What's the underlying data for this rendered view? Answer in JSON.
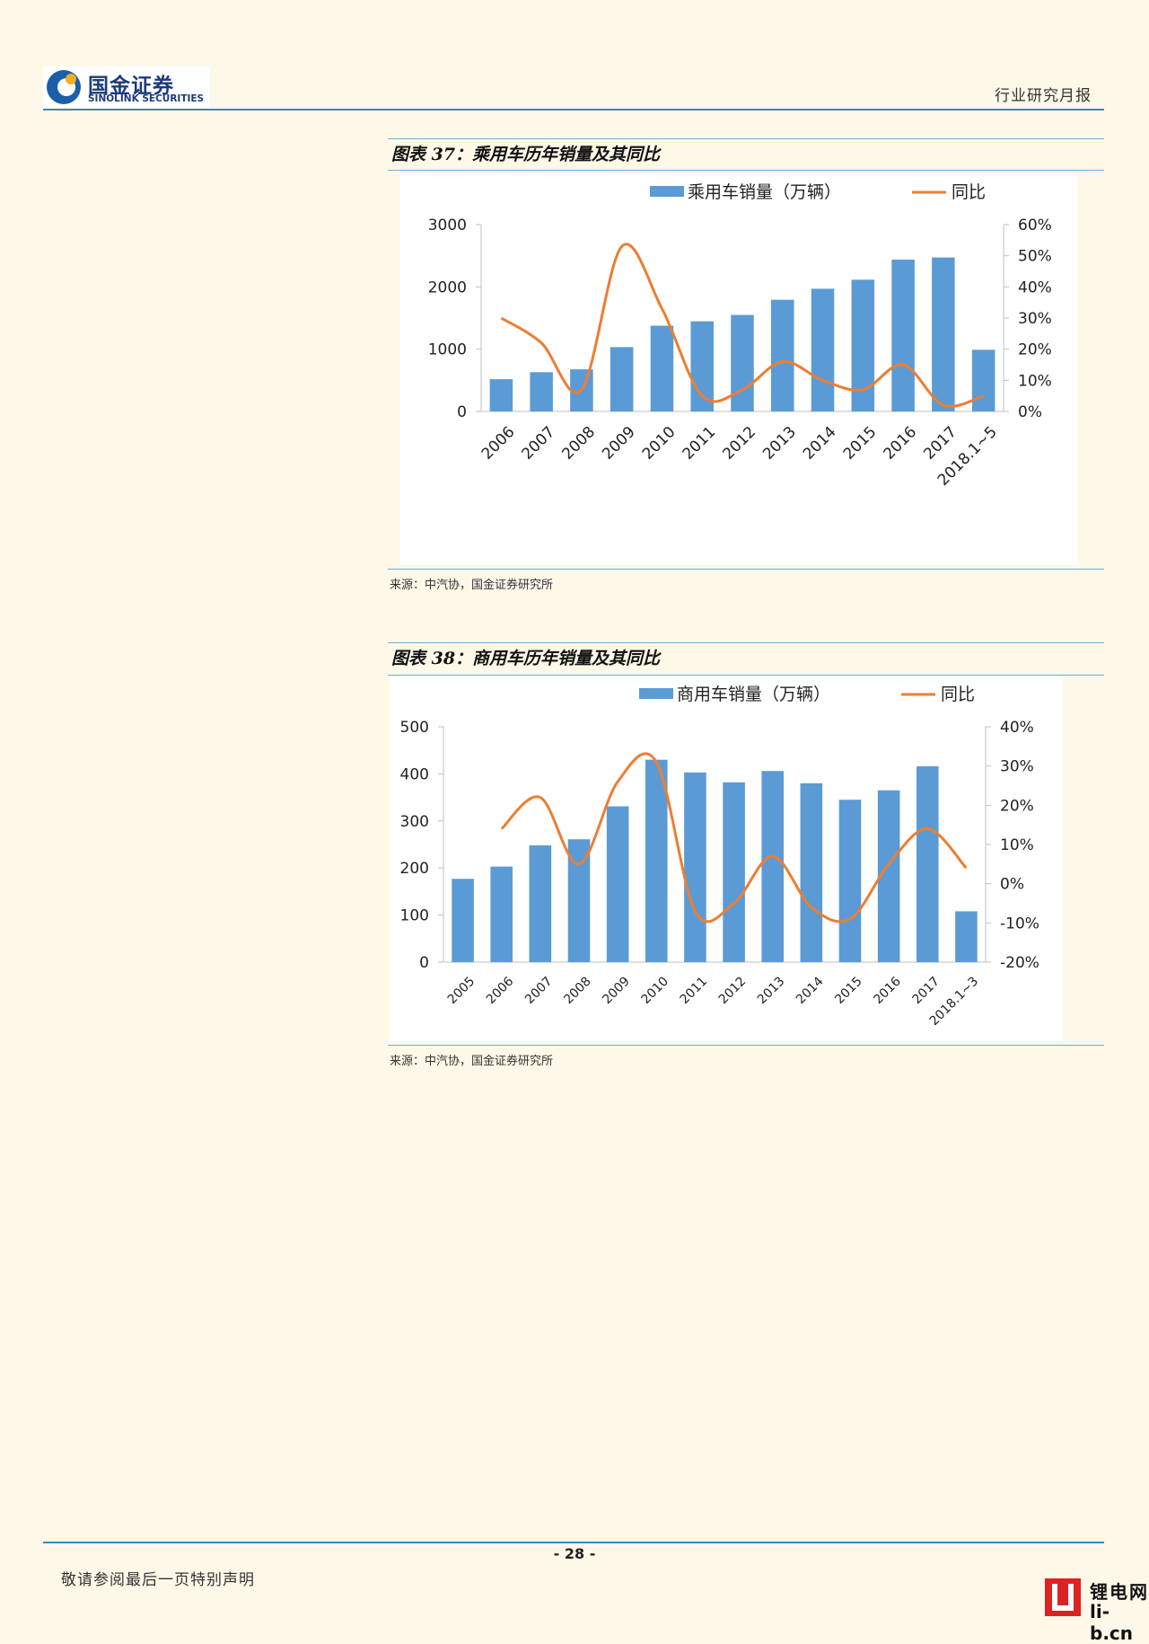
{
  "header": {
    "logo_cn": "国金证券",
    "logo_en": "SINOLINK SECURITIES",
    "report_type": "行业研究月报"
  },
  "colors": {
    "bar": "#5b9bd5",
    "line": "#ed7d31",
    "accent": "#2e8bc0"
  },
  "figures": [
    {
      "title": "图表 37：乘用车历年销量及其同比",
      "source": "来源：中汽协，国金证券研究所"
    },
    {
      "title": "图表 38：商用车历年销量及其同比",
      "source": "来源：中汽协，国金证券研究所"
    }
  ],
  "chart_data": [
    {
      "type": "bar",
      "categories": [
        "2006",
        "2007",
        "2008",
        "2009",
        "2010",
        "2011",
        "2012",
        "2013",
        "2014",
        "2015",
        "2016",
        "2017",
        "2018.1~5"
      ],
      "series": [
        {
          "name": "乘用车销量（万辆）",
          "kind": "bar",
          "axis": "left",
          "values": [
            518,
            630,
            676,
            1033,
            1376,
            1447,
            1550,
            1793,
            1970,
            2115,
            2438,
            2472,
            990
          ]
        },
        {
          "name": "同比",
          "kind": "line",
          "axis": "right",
          "values": [
            0.3,
            0.22,
            0.07,
            0.53,
            0.33,
            0.05,
            0.07,
            0.16,
            0.1,
            0.07,
            0.15,
            0.02,
            0.05
          ]
        }
      ],
      "ylim_left": [
        0,
        3000
      ],
      "yticks_left": [
        "0",
        "1000",
        "2000",
        "3000"
      ],
      "ylim_right": [
        0,
        0.6
      ],
      "yticks_right": [
        "0%",
        "10%",
        "20%",
        "30%",
        "40%",
        "50%",
        "60%"
      ],
      "legend": {
        "placement": "top",
        "bar_label": "乘用车销量（万辆）",
        "line_label": "同比"
      }
    },
    {
      "type": "bar",
      "categories": [
        "2005",
        "2006",
        "2007",
        "2008",
        "2009",
        "2010",
        "2011",
        "2012",
        "2013",
        "2014",
        "2015",
        "2016",
        "2017",
        "2018.1~3"
      ],
      "series": [
        {
          "name": "商用车销量（万辆）",
          "kind": "bar",
          "axis": "left",
          "values": [
            177,
            203,
            248,
            261,
            331,
            430,
            403,
            382,
            406,
            380,
            345,
            365,
            416,
            108
          ]
        },
        {
          "name": "同比",
          "kind": "line",
          "axis": "right",
          "values": [
            null,
            0.14,
            0.22,
            0.05,
            0.26,
            0.31,
            -0.07,
            -0.05,
            0.07,
            -0.06,
            -0.09,
            0.05,
            0.14,
            0.04
          ]
        }
      ],
      "ylim_left": [
        0,
        500
      ],
      "yticks_left": [
        "0",
        "100",
        "200",
        "300",
        "400",
        "500"
      ],
      "ylim_right": [
        -0.2,
        0.4
      ],
      "yticks_right": [
        "-20%",
        "-10%",
        "0%",
        "10%",
        "20%",
        "30%",
        "40%"
      ],
      "legend": {
        "placement": "top",
        "bar_label": "商用车销量（万辆）",
        "line_label": "同比"
      }
    }
  ],
  "footer": {
    "page_number": "- 28 -",
    "disclaimer": "敬请参阅最后一页特别声明",
    "watermark_cn": "锂电网",
    "watermark_en": "li-b.cn"
  }
}
